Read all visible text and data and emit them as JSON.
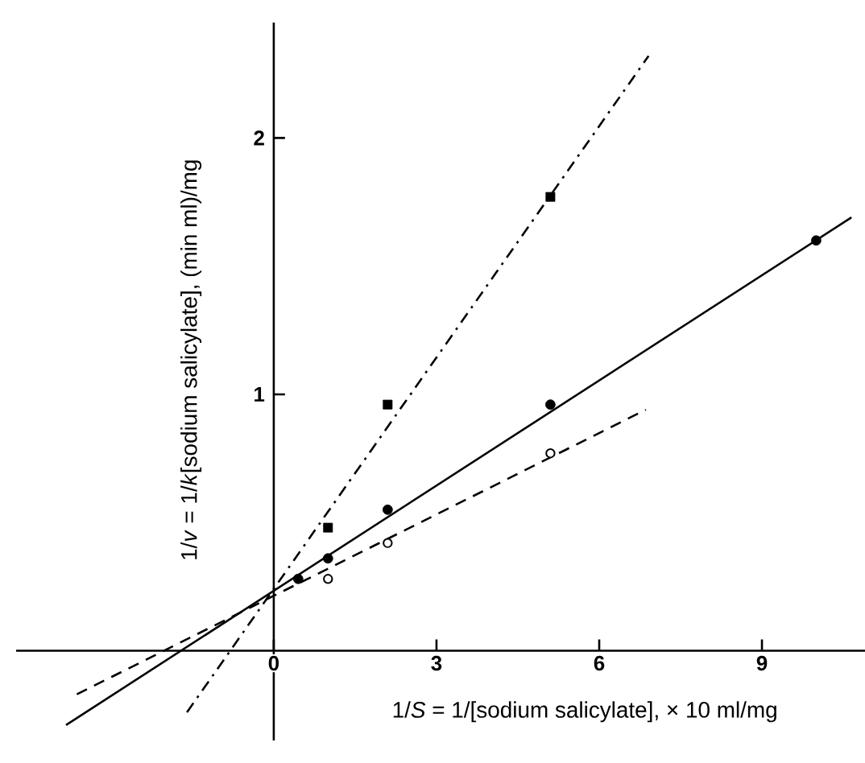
{
  "chart_data": {
    "type": "scatter",
    "xlabel": "1/*S* = 1/[sodium salicylate], × 10 ml/mg",
    "ylabel": "1/*v* = 1/*k*[sodium salicylate], (min ml)/mg",
    "xlim": [
      -4.75,
      10.9
    ],
    "ylim": [
      -0.35,
      2.45
    ],
    "xticks": [
      0,
      3,
      6,
      9
    ],
    "yticks": [
      1,
      2
    ],
    "grid": false,
    "series": [
      {
        "color": "#000000",
        "marker": "circle",
        "x": [
          0.45,
          1,
          2.1,
          5.1,
          10
        ],
        "values": [
          0.28,
          0.36,
          0.55,
          0.96,
          1.6
        ]
      },
      {
        "color": "#000000",
        "marker": "open circle",
        "x": [
          1,
          2.1,
          5.1
        ],
        "values": [
          0.28,
          0.42,
          0.77
        ]
      },
      {
        "color": "#000000",
        "marker": "square",
        "x": [
          1,
          2.1,
          5.1
        ],
        "values": [
          0.48,
          0.96,
          1.77
        ]
      },
      {
        "type": "line",
        "color": "#000000",
        "line_style": "solid",
        "marker": "none",
        "x": [
          -3.83,
          10.65
        ],
        "values": [
          -0.29,
          1.69
        ]
      },
      {
        "type": "line",
        "color": "#000000",
        "line_style": "dashed",
        "marker": "none",
        "x": [
          -3.63,
          6.86
        ],
        "values": [
          -0.17,
          0.94
        ]
      },
      {
        "type": "line",
        "color": "#000000",
        "line_style": "dashdot",
        "marker": "none",
        "x": [
          -1.6,
          6.91
        ],
        "values": [
          -0.24,
          2.32
        ]
      }
    ]
  }
}
